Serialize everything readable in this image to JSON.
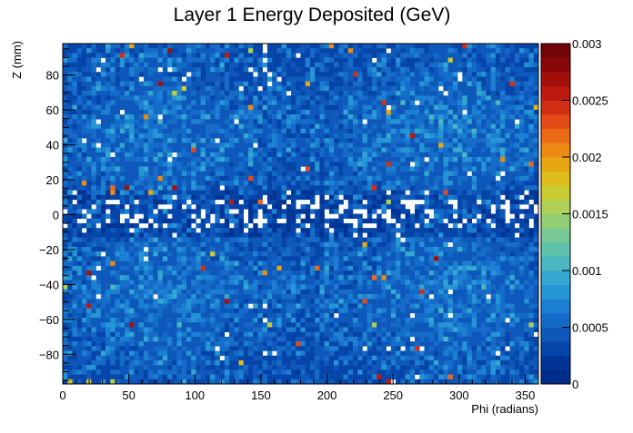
{
  "chart_data": {
    "type": "heatmap",
    "title": "Layer 1 Energy Deposited (GeV)",
    "xlabel": "Phi (radians)",
    "ylabel": "Z (mm)",
    "xlim": [
      0,
      360
    ],
    "ylim": [
      -97,
      98
    ],
    "x_ticks": [
      "0",
      "50",
      "100",
      "150",
      "200",
      "250",
      "300",
      "350"
    ],
    "y_ticks": [
      "−80",
      "−60",
      "−40",
      "−20",
      "0",
      "20",
      "40",
      "60",
      "80"
    ],
    "colorbar": {
      "range": [
        0,
        0.003
      ],
      "ticks": [
        "0",
        "0.0005",
        "0.001",
        "0.0015",
        "0.002",
        "0.0025",
        "0.003"
      ],
      "palette": [
        "#002c8a",
        "#003596",
        "#0545a9",
        "#0d58ba",
        "#146cc8",
        "#1c80d2",
        "#2596d5",
        "#34a8cf",
        "#4ab7c1",
        "#60c2ad",
        "#78c994",
        "#92ce74",
        "#aed055",
        "#c9cb33",
        "#dcbd19",
        "#e8a611",
        "#ec8a13",
        "#eb6a16",
        "#e24a17",
        "#d22f14",
        "#bc1c0f",
        "#a3100b",
        "#880709",
        "#720306"
      ]
    },
    "grid": false,
    "legend": "colorbar-right"
  }
}
